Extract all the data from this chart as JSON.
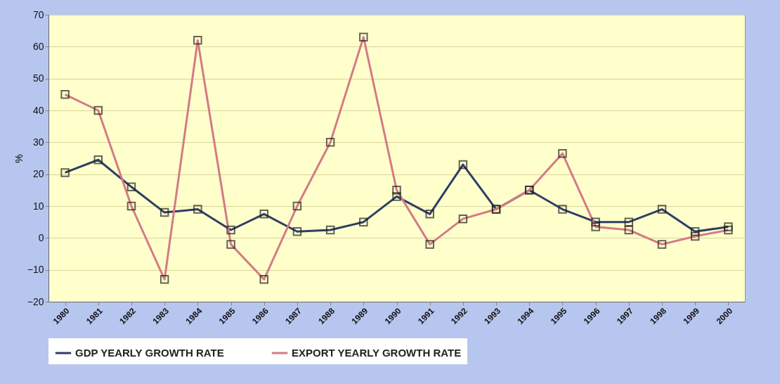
{
  "chart_data": {
    "type": "line",
    "ylabel": "%",
    "categories": [
      "1980",
      "1981",
      "1982",
      "1983",
      "1984",
      "1985",
      "1986",
      "1987",
      "1988",
      "1989",
      "1990",
      "1991",
      "1992",
      "1993",
      "1994",
      "1995",
      "1996",
      "1997",
      "1998",
      "1999",
      "2000"
    ],
    "series": [
      {
        "name": "GDP YEARLY GROWTH RATE",
        "color": "#2e3f63",
        "values": [
          20.5,
          24.5,
          16,
          8,
          9,
          2.5,
          7.5,
          2,
          2.5,
          5,
          13,
          7.5,
          23,
          9,
          15,
          9,
          5,
          5,
          9,
          2,
          3.5
        ]
      },
      {
        "name": "EXPORT YEARLY GROWTH RATE",
        "color": "#d47a86",
        "values": [
          45,
          40,
          10,
          -13,
          62,
          -2,
          -13,
          10,
          30,
          63,
          15,
          -2,
          6,
          9,
          15,
          26.5,
          3.5,
          2.5,
          -2,
          0.5,
          2.5
        ]
      }
    ],
    "ylim": [
      -20,
      70
    ],
    "yticks": [
      -20,
      -10,
      0,
      10,
      20,
      30,
      40,
      50,
      60,
      70
    ],
    "grid": "y",
    "legend": "bottom",
    "marker": "square",
    "line_style": "solid"
  }
}
